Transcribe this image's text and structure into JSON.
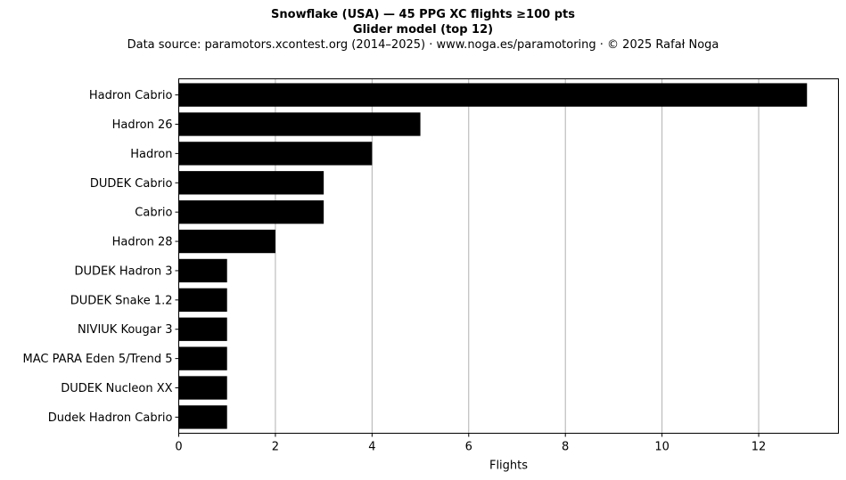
{
  "chart_data": {
    "type": "bar",
    "orientation": "horizontal",
    "title": "Snowflake (USA)  —  45 PPG XC flights ≥100 pts",
    "title2": "Glider model (top 12)",
    "subtitle": "Data source: paramotors.xcontest.org (2014–2025)  ·  www.noga.es/paramotoring  ·  © 2025 Rafał Noga",
    "xlabel": "Flights",
    "ylabel": "",
    "categories": [
      "Hadron Cabrio",
      "Hadron 26",
      "Hadron",
      "DUDEK Cabrio",
      "Cabrio",
      "Hadron 28",
      "DUDEK Hadron 3",
      "DUDEK Snake 1.2",
      "NIVIUK Kougar 3",
      "MAC PARA Eden 5/Trend 5",
      "DUDEK Nucleon XX",
      "Dudek Hadron Cabrio"
    ],
    "values": [
      13,
      5,
      4,
      3,
      3,
      2,
      1,
      1,
      1,
      1,
      1,
      1
    ],
    "xlim": [
      0,
      13.65
    ],
    "xticks": [
      0,
      2,
      4,
      6,
      8,
      10,
      12
    ],
    "grid": "vertical",
    "legend": "none",
    "bar_color": "#000000",
    "grid_color": "#b0b0b0"
  }
}
